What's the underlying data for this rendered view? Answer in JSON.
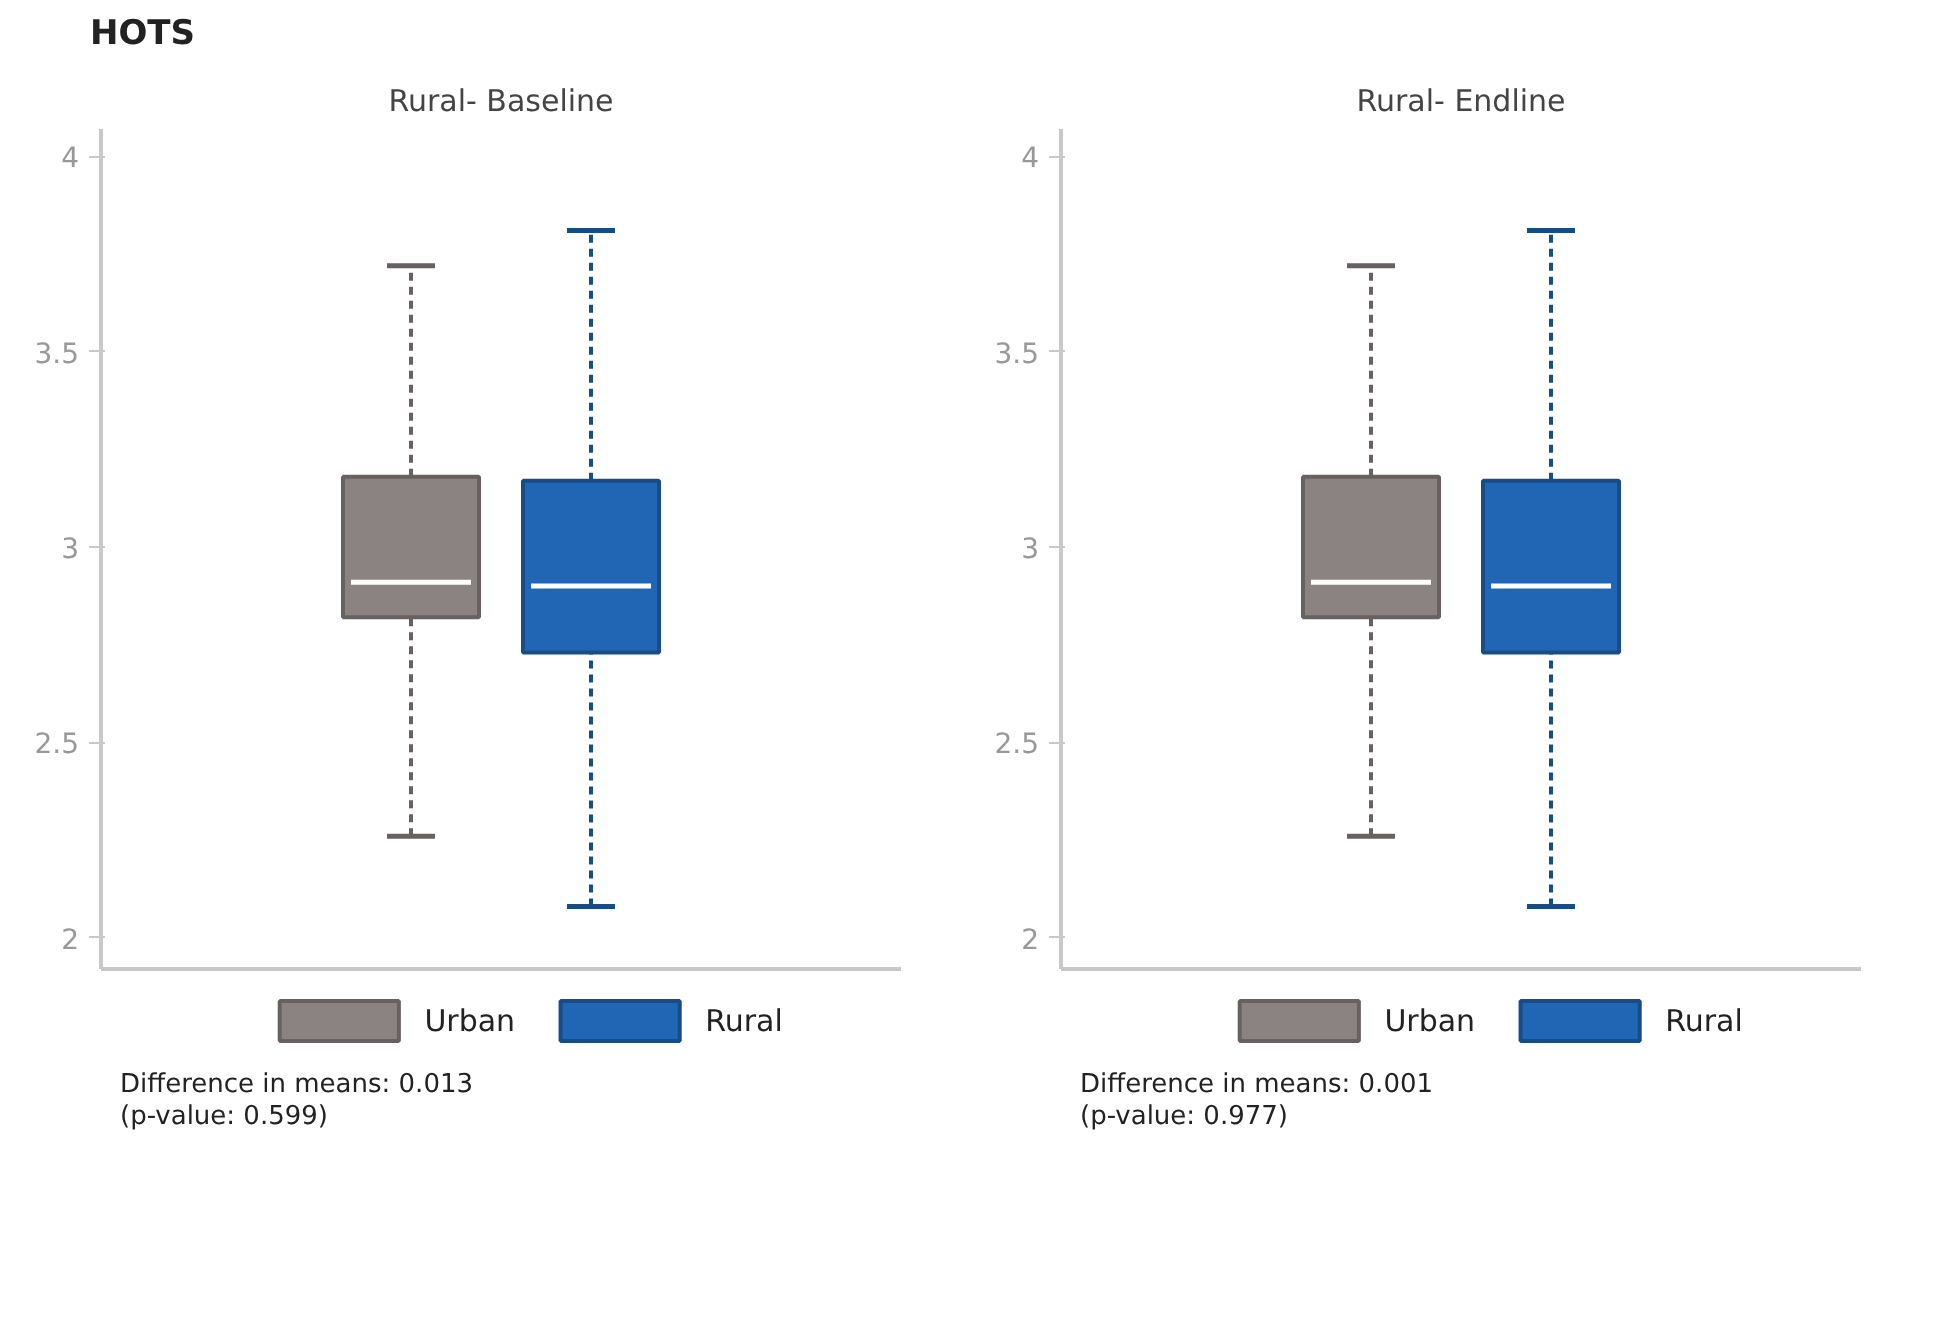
{
  "chart_data": [
    {
      "type": "box",
      "title": "HOTS",
      "subtitle": "Rural- Baseline",
      "categories": [
        null
      ],
      "ylim": [
        1.92,
        4.07
      ],
      "yticks": [
        2,
        2.5,
        3,
        3.5,
        4
      ],
      "grid": false,
      "legend": "bottom",
      "tick_labels": "y",
      "line_style": "dashed",
      "series": [
        {
          "name": "Urban",
          "color": "#8a8381",
          "boxes": [
            {
              "low": 2.26,
              "q1": 2.82,
              "median": 2.91,
              "q3": 3.18,
              "high": 3.72
            }
          ]
        },
        {
          "name": "Rural",
          "color": "#2166b4",
          "boxes": [
            {
              "low": 2.08,
              "q1": 2.73,
              "median": 2.9,
              "q3": 3.17,
              "high": 3.81
            }
          ]
        }
      ],
      "annotations": [
        "Difference in means: 0.013\n(p-value: 0.599)"
      ]
    },
    {
      "type": "box",
      "subtitle": "Rural- Endline",
      "categories": [
        null
      ],
      "ylim": [
        1.92,
        4.07
      ],
      "yticks": [
        2,
        2.5,
        3,
        3.5,
        4
      ],
      "grid": false,
      "legend": "bottom",
      "tick_labels": "y",
      "line_style": "dashed",
      "series": [
        {
          "name": "Urban",
          "color": "#8a8381",
          "boxes": [
            {
              "low": 2.26,
              "q1": 2.82,
              "median": 2.91,
              "q3": 3.18,
              "high": 3.72
            }
          ]
        },
        {
          "name": "Rural",
          "color": "#2166b4",
          "boxes": [
            {
              "low": 2.08,
              "q1": 2.73,
              "median": 2.9,
              "q3": 3.17,
              "high": 3.81
            }
          ]
        }
      ],
      "annotations": [
        "Difference in means: 0.001\n(p-value: 0.977)"
      ]
    }
  ]
}
